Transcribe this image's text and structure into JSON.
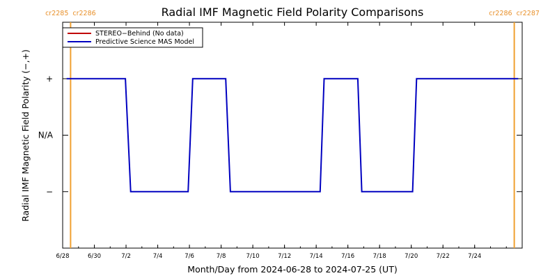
{
  "chart_data": {
    "type": "line",
    "title": "Radial IMF Magnetic Field Polarity Comparisons",
    "xlabel": "Month/Day from 2024-06-28 to 2024-07-25 (UT)",
    "ylabel": "Radial IMF Magnetic Field Polarity (−,+)",
    "x_start": "2024-06-28",
    "xlim": [
      "2024-06-28",
      "2024-07-27"
    ],
    "x_ticks": [
      {
        "date": "2024-06-28",
        "label": "6/28"
      },
      {
        "date": "2024-06-30",
        "label": "6/30"
      },
      {
        "date": "2024-07-02",
        "label": "7/2"
      },
      {
        "date": "2024-07-04",
        "label": "7/4"
      },
      {
        "date": "2024-07-06",
        "label": "7/6"
      },
      {
        "date": "2024-07-08",
        "label": "7/8"
      },
      {
        "date": "2024-07-10",
        "label": "7/10"
      },
      {
        "date": "2024-07-12",
        "label": "7/12"
      },
      {
        "date": "2024-07-14",
        "label": "7/14"
      },
      {
        "date": "2024-07-16",
        "label": "7/16"
      },
      {
        "date": "2024-07-18",
        "label": "7/18"
      },
      {
        "date": "2024-07-20",
        "label": "7/20"
      },
      {
        "date": "2024-07-22",
        "label": "7/22"
      },
      {
        "date": "2024-07-24",
        "label": "7/24"
      }
    ],
    "y_ticks": [
      {
        "value": 1,
        "label": "+"
      },
      {
        "value": 0,
        "label": "N/A"
      },
      {
        "value": -1,
        "label": "−"
      }
    ],
    "ylim": [
      -2,
      2
    ],
    "series": [
      {
        "name": "STEREO−Behind (No data)",
        "color": "#c00000",
        "values": []
      },
      {
        "name": "Predictive Science MAS Model",
        "color": "#0000c0",
        "values": [
          {
            "x": "2024-06-28T06:00",
            "y": 1
          },
          {
            "x": "2024-07-01T23:00",
            "y": 1
          },
          {
            "x": "2024-07-02T07:00",
            "y": -1
          },
          {
            "x": "2024-07-05T22:00",
            "y": -1
          },
          {
            "x": "2024-07-06T05:00",
            "y": 1
          },
          {
            "x": "2024-07-08T07:00",
            "y": 1
          },
          {
            "x": "2024-07-08T14:00",
            "y": -1
          },
          {
            "x": "2024-07-14T06:00",
            "y": -1
          },
          {
            "x": "2024-07-14T12:00",
            "y": 1
          },
          {
            "x": "2024-07-16T15:00",
            "y": 1
          },
          {
            "x": "2024-07-16T21:00",
            "y": -1
          },
          {
            "x": "2024-07-20T02:00",
            "y": -1
          },
          {
            "x": "2024-07-20T08:00",
            "y": 1
          },
          {
            "x": "2024-07-26T18:00",
            "y": 1
          }
        ]
      }
    ],
    "markers": [
      {
        "date": "2024-06-28T12:00",
        "left_label": "cr2285",
        "right_label": "cr2286",
        "color": "#f0a030"
      },
      {
        "date": "2024-07-26T12:00",
        "left_label": "cr2286",
        "right_label": "cr2287",
        "color": "#f0a030"
      }
    ],
    "legend_placement": "top-left",
    "grid": false
  }
}
